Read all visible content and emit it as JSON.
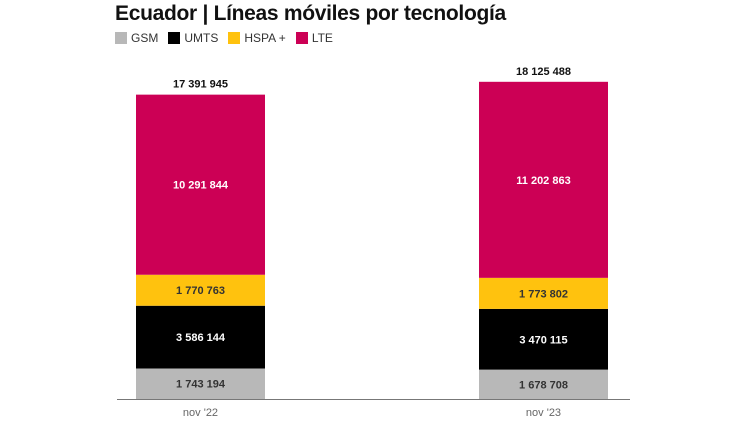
{
  "chart_data": {
    "type": "bar",
    "stacked": true,
    "title": "Ecuador | Líneas móviles por tecnología",
    "categories": [
      "nov '22",
      "nov '23"
    ],
    "series": [
      {
        "name": "GSM",
        "color": "#b8b8b8",
        "label_color": "#333333",
        "values": [
          1743194,
          1678708
        ],
        "labels": [
          "1 743 194",
          "1 678 708"
        ]
      },
      {
        "name": "UMTS",
        "color": "#000000",
        "label_color": "#ffffff",
        "values": [
          3586144,
          3470115
        ],
        "labels": [
          "3 586 144",
          "3 470 115"
        ]
      },
      {
        "name": "HSPA +",
        "color": "#ffc20e",
        "label_color": "#333333",
        "values": [
          1770763,
          1773802
        ],
        "labels": [
          "1 770 763",
          "1 773 802"
        ]
      },
      {
        "name": "LTE",
        "color": "#cc0055",
        "label_color": "#ffffff",
        "values": [
          10291844,
          11202863
        ],
        "labels": [
          "10 291 844",
          "11 202 863"
        ]
      }
    ],
    "totals": [
      17391945,
      18125488
    ],
    "total_labels": [
      "17 391 945",
      "18 125 488"
    ],
    "legend": "top-left",
    "grid": false
  }
}
